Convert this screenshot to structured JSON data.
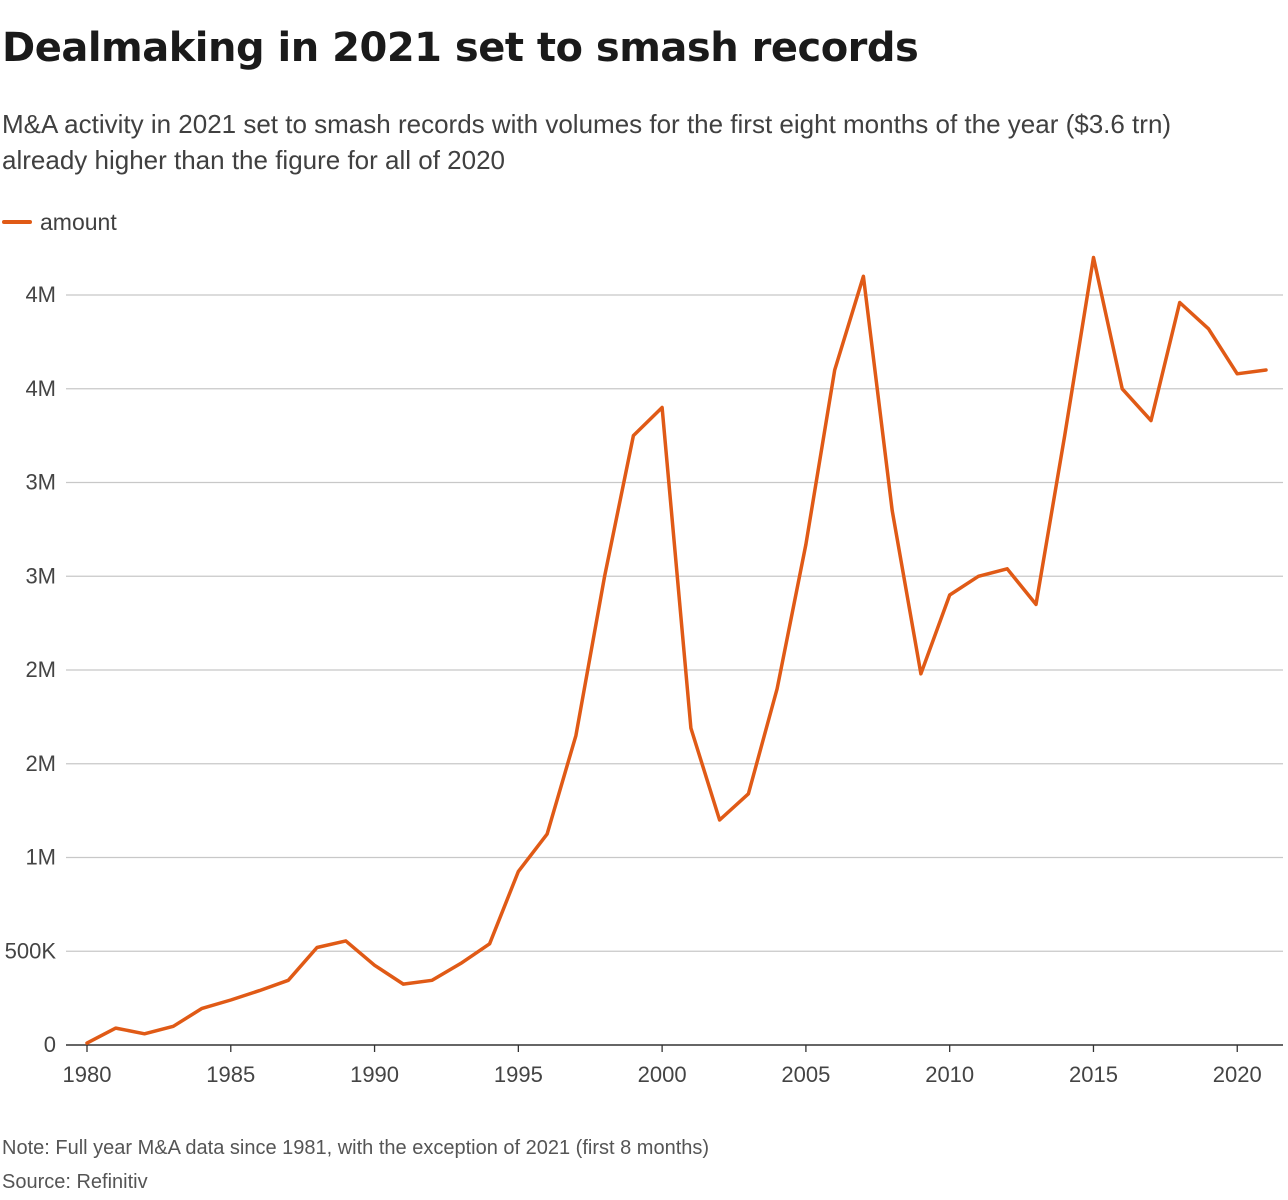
{
  "header": {
    "title": "Dealmaking in 2021 set to smash records",
    "subtitle": "M&A activity in 2021 set to smash records with volumes for the first eight months of the year ($3.6 trn) already higher than the figure for all of 2020"
  },
  "legend": {
    "label": "amount",
    "color": "#e05a16"
  },
  "footer": {
    "note": "Note: Full year M&A data since 1981, with the exception of 2021 (first 8 months)",
    "source": "Source: Refinitiv"
  },
  "chart_data": {
    "type": "line",
    "title": "Dealmaking in 2021 set to smash records",
    "xlabel": "",
    "ylabel": "",
    "legend_position": "top-left",
    "grid": true,
    "x": [
      1980,
      1981,
      1982,
      1983,
      1984,
      1985,
      1986,
      1987,
      1988,
      1989,
      1990,
      1991,
      1992,
      1993,
      1994,
      1995,
      1996,
      1997,
      1998,
      1999,
      2000,
      2001,
      2002,
      2003,
      2004,
      2005,
      2006,
      2007,
      2008,
      2009,
      2010,
      2011,
      2012,
      2013,
      2014,
      2015,
      2016,
      2017,
      2018,
      2019,
      2020,
      2021
    ],
    "series": [
      {
        "name": "amount",
        "color": "#e05a16",
        "values": [
          10000,
          90000,
          60000,
          100000,
          195000,
          240000,
          290000,
          345000,
          520000,
          555000,
          425000,
          325000,
          345000,
          435000,
          540000,
          925000,
          1125000,
          1650000,
          2500000,
          3250000,
          3400000,
          1690000,
          1200000,
          1340000,
          1900000,
          2670000,
          3600000,
          4100000,
          2850000,
          1980000,
          2400000,
          2500000,
          2540000,
          2350000,
          3250000,
          4200000,
          3500000,
          3330000,
          3960000,
          3820000,
          3580000,
          3600000
        ]
      }
    ],
    "xlim": [
      1980,
      2021
    ],
    "ylim": [
      0,
      4200000
    ],
    "x_ticks": [
      1980,
      1985,
      1990,
      1995,
      2000,
      2005,
      2010,
      2015,
      2020
    ],
    "y_ticks": [
      0,
      500000,
      1000000,
      1500000,
      2000000,
      2500000,
      3000000,
      3500000,
      4000000
    ],
    "x_tick_labels": [
      "1980",
      "1985",
      "1990",
      "1995",
      "2000",
      "2005",
      "2010",
      "2015",
      "2020"
    ],
    "y_tick_labels": [
      "0",
      "500K",
      "1M",
      "2M",
      "2M",
      "3M",
      "3M",
      "4M",
      "4M"
    ]
  }
}
